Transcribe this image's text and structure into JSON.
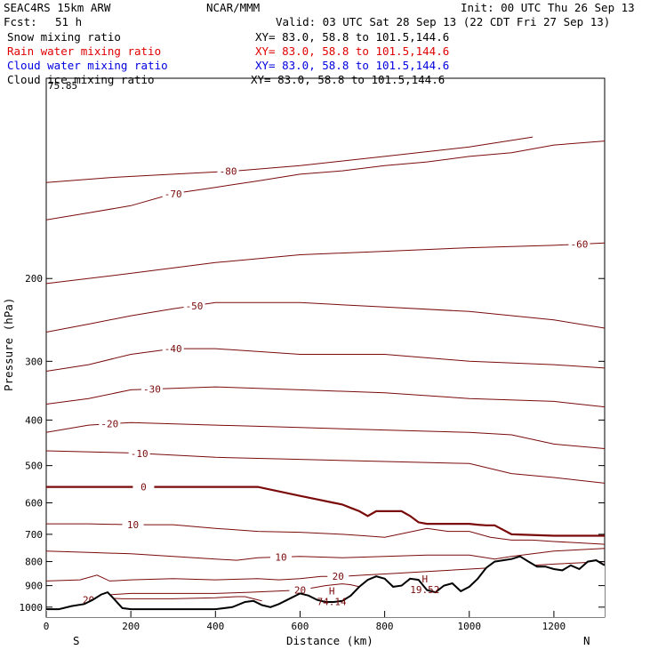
{
  "header": {
    "model": "SEAC4RS 15km ARW",
    "org": "NCAR/MMM",
    "init": "Init: 00 UTC Thu 26 Sep 13",
    "fcst_label": "Fcst:",
    "fcst_value": "51 h",
    "valid": "Valid: 03 UTC Sat 28 Sep 13 (22 CDT Fri 27 Sep 13)"
  },
  "legend": [
    {
      "label": "Snow mixing ratio",
      "xy": "XY=  83.0, 58.8 to 101.5,144.6",
      "color": "#000000"
    },
    {
      "label": "Rain water mixing ratio",
      "xy": "XY=  83.0, 58.8 to 101.5,144.6",
      "color": "#e00000"
    },
    {
      "label": "Cloud water mixing ratio",
      "xy": "XY=  83.0, 58.8 to 101.5,144.6",
      "color": "#0000e0"
    },
    {
      "label": "Cloud ice mixing ratio",
      "xy": "XY=  83.0, 58.8 to 101.5,144.6",
      "color": "#000000"
    }
  ],
  "colors": {
    "contour": "#7a0a0a",
    "terrain": "#000000",
    "background": "#ffffff"
  },
  "chart_data": {
    "type": "line",
    "xlabel": "Distance (km)",
    "ylabel": "Pressure (hPa)",
    "xlim": [
      0,
      1320
    ],
    "ylim": [
      1050,
      100
    ],
    "x_ticks": [
      0,
      200,
      400,
      600,
      800,
      1000,
      1200
    ],
    "x_tick_labels": [
      "0",
      "200",
      "400",
      "600",
      "800",
      "1000",
      "1200"
    ],
    "y_ticks": [
      200,
      300,
      400,
      500,
      600,
      700,
      800,
      900,
      1000
    ],
    "y_tick_labels": [
      "200",
      "300",
      "400",
      "500",
      "600",
      "700",
      "800",
      "900",
      "1000"
    ],
    "y_top_label": "75.85",
    "left_end": "S",
    "right_end": "N",
    "terrain": {
      "x": [
        0,
        30,
        60,
        90,
        110,
        130,
        145,
        160,
        180,
        200,
        250,
        300,
        350,
        400,
        440,
        470,
        490,
        510,
        530,
        550,
        580,
        600,
        620,
        640,
        660,
        680,
        700,
        720,
        740,
        760,
        780,
        800,
        820,
        840,
        860,
        880,
        900,
        920,
        940,
        960,
        980,
        1000,
        1020,
        1040,
        1060,
        1080,
        1100,
        1120,
        1140,
        1160,
        1180,
        1200,
        1220,
        1240,
        1260,
        1280,
        1300,
        1320
      ],
      "p": [
        1010,
        1010,
        995,
        985,
        965,
        940,
        930,
        960,
        1005,
        1010,
        1010,
        1010,
        1010,
        1010,
        1000,
        975,
        970,
        990,
        1000,
        985,
        955,
        935,
        945,
        965,
        975,
        975,
        970,
        945,
        905,
        875,
        860,
        870,
        905,
        900,
        870,
        875,
        920,
        930,
        900,
        890,
        925,
        905,
        870,
        825,
        800,
        795,
        790,
        780,
        800,
        820,
        820,
        830,
        835,
        815,
        830,
        800,
        795,
        815
      ]
    },
    "highs": [
      {
        "x": 675,
        "p": 965,
        "label": "H",
        "value": "74.14"
      },
      {
        "x": 895,
        "p": 910,
        "label": "H",
        "value": "19.52"
      }
    ],
    "contours": [
      {
        "level": 0,
        "emphasis": true,
        "label_x": 230,
        "x": [
          0,
          100,
          200,
          300,
          400,
          500,
          600,
          640,
          680,
          700,
          720,
          740,
          760,
          780,
          800,
          820,
          840,
          860,
          880,
          900,
          940,
          980,
          1000,
          1020,
          1040,
          1060,
          1100,
          1200,
          1320
        ],
        "p": [
          555,
          555,
          555,
          555,
          555,
          555,
          580,
          590,
          600,
          605,
          615,
          625,
          640,
          625,
          625,
          625,
          625,
          640,
          660,
          665,
          665,
          665,
          665,
          668,
          670,
          670,
          700,
          705,
          705
        ]
      },
      {
        "level": 10,
        "emphasis": false,
        "label_x": 205,
        "x": [
          0,
          100,
          200,
          300,
          400,
          500,
          600,
          700,
          750,
          800,
          850,
          900,
          950,
          1000,
          1050,
          1100,
          1150,
          1200,
          1260,
          1320
        ],
        "p": [
          665,
          665,
          668,
          668,
          680,
          690,
          693,
          700,
          705,
          710,
          695,
          680,
          690,
          690,
          710,
          720,
          720,
          725,
          730,
          735
        ]
      },
      {
        "level": 10,
        "emphasis": false,
        "label_x": 555,
        "x": [
          0,
          100,
          200,
          300,
          400,
          450,
          500,
          600,
          700,
          800,
          900,
          1000,
          1060,
          1100,
          1200,
          1260,
          1320
        ],
        "p": [
          760,
          765,
          770,
          780,
          790,
          795,
          785,
          780,
          785,
          780,
          775,
          775,
          790,
          780,
          760,
          755,
          750
        ]
      },
      {
        "level": 20,
        "emphasis": false,
        "label_x": 690,
        "x": [
          0,
          80,
          120,
          150,
          200,
          300,
          400,
          500,
          550,
          600,
          650,
          700,
          750,
          800,
          900,
          1000,
          1100,
          1200,
          1320
        ],
        "p": [
          880,
          875,
          855,
          880,
          875,
          870,
          875,
          870,
          875,
          870,
          860,
          860,
          855,
          850,
          840,
          830,
          820,
          810,
          800
        ]
      },
      {
        "level": 20,
        "emphasis": false,
        "label_x": 600,
        "x": [
          80,
          120,
          200,
          300,
          400,
          480,
          600,
          660,
          700,
          720,
          740
        ],
        "p": [
          960,
          945,
          935,
          935,
          935,
          930,
          920,
          900,
          892,
          896,
          905
        ]
      },
      {
        "level": 20,
        "emphasis": false,
        "label_x": 100,
        "x": [
          80,
          100,
          130,
          180,
          300,
          400,
          450,
          470,
          490,
          510
        ],
        "p": [
          985,
          965,
          955,
          960,
          960,
          955,
          950,
          950,
          960,
          970
        ]
      },
      {
        "level": -10,
        "emphasis": false,
        "label_x": 220,
        "x": [
          0,
          200,
          400,
          600,
          800,
          1000,
          1100,
          1200,
          1320
        ],
        "p": [
          465,
          470,
          480,
          485,
          490,
          495,
          520,
          530,
          545
        ]
      },
      {
        "level": -20,
        "emphasis": false,
        "label_x": 150,
        "x": [
          0,
          100,
          200,
          400,
          600,
          800,
          1000,
          1100,
          1200,
          1320
        ],
        "p": [
          425,
          410,
          405,
          410,
          415,
          420,
          425,
          430,
          450,
          460
        ]
      },
      {
        "level": -30,
        "emphasis": false,
        "label_x": 250,
        "x": [
          0,
          100,
          200,
          400,
          600,
          800,
          1000,
          1200,
          1320
        ],
        "p": [
          370,
          360,
          345,
          340,
          345,
          350,
          360,
          365,
          375
        ]
      },
      {
        "level": -40,
        "emphasis": false,
        "label_x": 300,
        "x": [
          0,
          100,
          200,
          300,
          400,
          600,
          800,
          1000,
          1200,
          1320
        ],
        "p": [
          315,
          305,
          290,
          282,
          282,
          290,
          290,
          300,
          305,
          310
        ]
      },
      {
        "level": -50,
        "emphasis": false,
        "label_x": 350,
        "x": [
          0,
          100,
          200,
          300,
          400,
          600,
          800,
          1000,
          1200,
          1320
        ],
        "p": [
          260,
          250,
          240,
          232,
          225,
          225,
          230,
          235,
          245,
          255
        ]
      },
      {
        "level": -60,
        "emphasis": false,
        "label_x": 1260,
        "x": [
          0,
          200,
          400,
          600,
          800,
          1000,
          1200,
          1320
        ],
        "p": [
          205,
          195,
          185,
          178,
          175,
          172,
          170,
          168
        ]
      },
      {
        "level": -70,
        "emphasis": false,
        "label_x": 300,
        "x": [
          0,
          100,
          200,
          300,
          400,
          500,
          600,
          700,
          800,
          900,
          1000,
          1100,
          1200,
          1320
        ],
        "p": [
          150,
          145,
          140,
          132,
          128,
          124,
          120,
          118,
          115,
          113,
          110,
          108,
          104,
          102
        ]
      },
      {
        "level": -80,
        "emphasis": false,
        "label_x": 430,
        "x": [
          0,
          150,
          300,
          450,
          600,
          800,
          1000,
          1150
        ],
        "p": [
          125,
          122,
          120,
          118,
          115,
          110,
          105,
          100
        ]
      }
    ]
  }
}
